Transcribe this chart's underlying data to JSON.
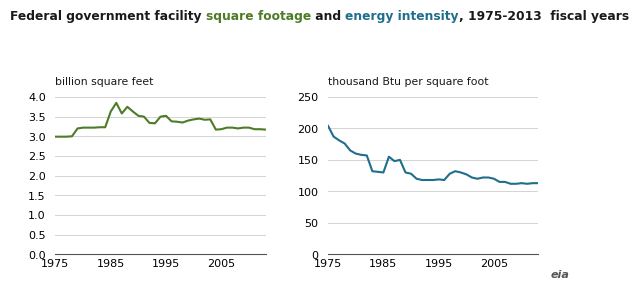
{
  "title_black": "Federal government facility ",
  "title_green": "square footage",
  "title_mid": " and ",
  "title_blue": "energy intensity",
  "title_end": ", 1975-2013  fiscal years",
  "ylabel_left": "billion square feet",
  "ylabel_right": "thousand Btu per square foot",
  "green_color": "#4d7c27",
  "blue_color": "#1f6e8c",
  "sq_ft_years": [
    1975,
    1976,
    1977,
    1978,
    1979,
    1980,
    1981,
    1982,
    1983,
    1984,
    1985,
    1986,
    1987,
    1988,
    1989,
    1990,
    1991,
    1992,
    1993,
    1994,
    1995,
    1996,
    1997,
    1998,
    1999,
    2000,
    2001,
    2002,
    2003,
    2004,
    2005,
    2006,
    2007,
    2008,
    2009,
    2010,
    2011,
    2012,
    2013
  ],
  "sq_ft_values": [
    2.99,
    2.99,
    2.99,
    3.0,
    3.2,
    3.22,
    3.22,
    3.22,
    3.23,
    3.23,
    3.63,
    3.85,
    3.58,
    3.75,
    3.63,
    3.52,
    3.5,
    3.34,
    3.33,
    3.5,
    3.52,
    3.38,
    3.37,
    3.35,
    3.4,
    3.43,
    3.45,
    3.42,
    3.43,
    3.17,
    3.18,
    3.22,
    3.22,
    3.2,
    3.22,
    3.22,
    3.18,
    3.18,
    3.17
  ],
  "energy_years": [
    1975,
    1976,
    1977,
    1978,
    1979,
    1980,
    1981,
    1982,
    1983,
    1984,
    1985,
    1986,
    1987,
    1988,
    1989,
    1990,
    1991,
    1992,
    1993,
    1994,
    1995,
    1996,
    1997,
    1998,
    1999,
    2000,
    2001,
    2002,
    2003,
    2004,
    2005,
    2006,
    2007,
    2008,
    2009,
    2010,
    2011,
    2012,
    2013
  ],
  "energy_values": [
    204,
    187,
    181,
    176,
    165,
    160,
    158,
    157,
    132,
    131,
    130,
    155,
    148,
    150,
    130,
    128,
    120,
    118,
    118,
    118,
    119,
    118,
    128,
    132,
    130,
    127,
    122,
    120,
    122,
    122,
    120,
    115,
    115,
    112,
    112,
    113,
    112,
    113,
    113
  ],
  "ylim_left": [
    0,
    4.0
  ],
  "ylim_right": [
    0,
    250
  ],
  "yticks_left": [
    0.0,
    0.5,
    1.0,
    1.5,
    2.0,
    2.5,
    3.0,
    3.5,
    4.0
  ],
  "yticks_right": [
    0,
    50,
    100,
    150,
    200,
    250
  ],
  "xticks": [
    1975,
    1985,
    1995,
    2005
  ],
  "background_color": "#ffffff",
  "grid_color": "#cccccc",
  "title_fontsize": 8.8,
  "axis_label_fontsize": 7.8,
  "tick_fontsize": 8.0,
  "text_color": "#1a1a1a"
}
